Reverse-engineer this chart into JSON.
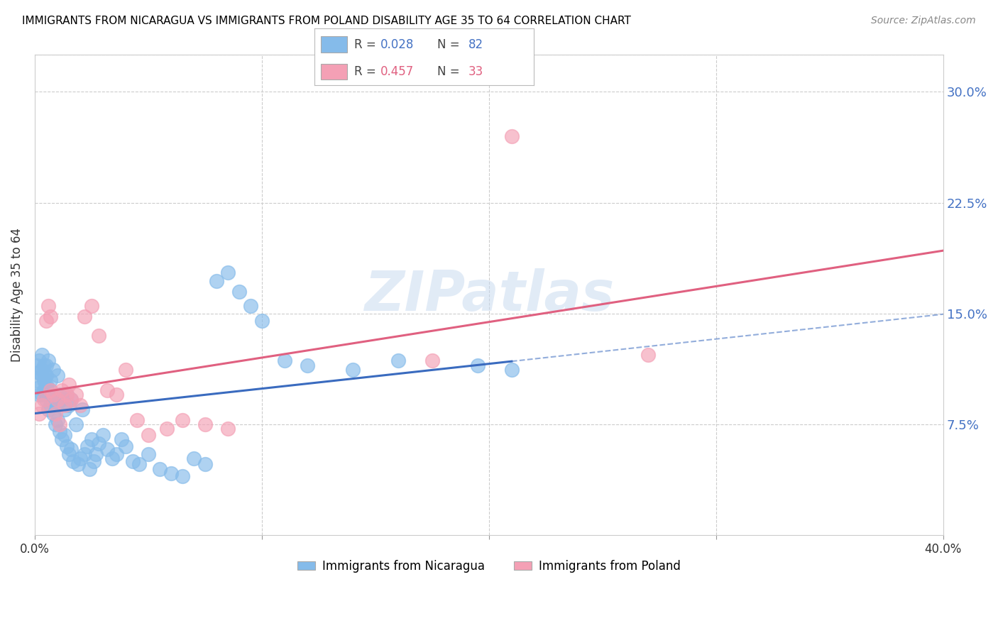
{
  "title": "IMMIGRANTS FROM NICARAGUA VS IMMIGRANTS FROM POLAND DISABILITY AGE 35 TO 64 CORRELATION CHART",
  "source": "Source: ZipAtlas.com",
  "ylabel": "Disability Age 35 to 64",
  "xlim": [
    0.0,
    0.4
  ],
  "ylim": [
    0.0,
    0.325
  ],
  "nicaragua_color": "#85BBEA",
  "poland_color": "#F4A0B5",
  "nicaragua_line_color": "#3A6BBF",
  "poland_line_color": "#E06080",
  "legend_label1": "Immigrants from Nicaragua",
  "legend_label2": "Immigrants from Poland",
  "watermark": "ZIPatlas",
  "nicaragua_x": [
    0.001,
    0.001,
    0.002,
    0.002,
    0.002,
    0.002,
    0.003,
    0.003,
    0.003,
    0.003,
    0.004,
    0.004,
    0.004,
    0.004,
    0.005,
    0.005,
    0.005,
    0.005,
    0.005,
    0.006,
    0.006,
    0.006,
    0.007,
    0.007,
    0.007,
    0.008,
    0.008,
    0.008,
    0.009,
    0.009,
    0.01,
    0.01,
    0.01,
    0.011,
    0.011,
    0.012,
    0.012,
    0.013,
    0.013,
    0.014,
    0.014,
    0.015,
    0.015,
    0.016,
    0.016,
    0.017,
    0.018,
    0.019,
    0.02,
    0.021,
    0.022,
    0.023,
    0.024,
    0.025,
    0.026,
    0.027,
    0.028,
    0.03,
    0.032,
    0.034,
    0.036,
    0.038,
    0.04,
    0.043,
    0.046,
    0.05,
    0.055,
    0.06,
    0.065,
    0.07,
    0.075,
    0.08,
    0.085,
    0.09,
    0.095,
    0.1,
    0.11,
    0.12,
    0.14,
    0.16,
    0.195,
    0.21
  ],
  "nicaragua_y": [
    0.115,
    0.105,
    0.1,
    0.11,
    0.118,
    0.095,
    0.122,
    0.108,
    0.095,
    0.112,
    0.115,
    0.098,
    0.105,
    0.11,
    0.092,
    0.1,
    0.108,
    0.115,
    0.102,
    0.085,
    0.095,
    0.118,
    0.088,
    0.098,
    0.105,
    0.082,
    0.092,
    0.112,
    0.075,
    0.088,
    0.078,
    0.09,
    0.108,
    0.07,
    0.095,
    0.065,
    0.092,
    0.068,
    0.085,
    0.06,
    0.095,
    0.055,
    0.088,
    0.058,
    0.092,
    0.05,
    0.075,
    0.048,
    0.052,
    0.085,
    0.055,
    0.06,
    0.045,
    0.065,
    0.05,
    0.055,
    0.062,
    0.068,
    0.058,
    0.052,
    0.055,
    0.065,
    0.06,
    0.05,
    0.048,
    0.055,
    0.045,
    0.042,
    0.04,
    0.052,
    0.048,
    0.172,
    0.178,
    0.165,
    0.155,
    0.145,
    0.118,
    0.115,
    0.112,
    0.118,
    0.115,
    0.112
  ],
  "poland_x": [
    0.002,
    0.003,
    0.004,
    0.005,
    0.006,
    0.007,
    0.007,
    0.008,
    0.009,
    0.01,
    0.011,
    0.012,
    0.013,
    0.014,
    0.015,
    0.016,
    0.018,
    0.02,
    0.022,
    0.025,
    0.028,
    0.032,
    0.036,
    0.04,
    0.045,
    0.05,
    0.058,
    0.065,
    0.075,
    0.085,
    0.175,
    0.21,
    0.27
  ],
  "poland_y": [
    0.082,
    0.088,
    0.092,
    0.145,
    0.155,
    0.098,
    0.148,
    0.095,
    0.082,
    0.092,
    0.075,
    0.098,
    0.088,
    0.095,
    0.102,
    0.092,
    0.095,
    0.088,
    0.148,
    0.155,
    0.135,
    0.098,
    0.095,
    0.112,
    0.078,
    0.068,
    0.072,
    0.078,
    0.075,
    0.072,
    0.118,
    0.27,
    0.122
  ]
}
